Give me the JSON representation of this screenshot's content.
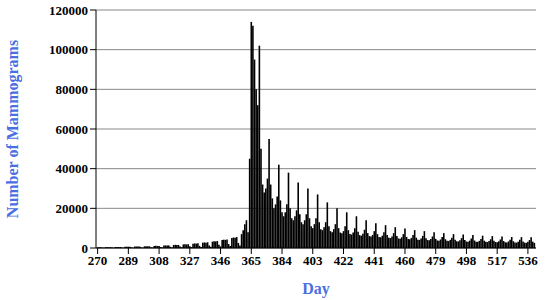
{
  "chart_data": {
    "type": "bar",
    "x_label": "Day",
    "y_label": "Number of Mammograms",
    "color": "#000000",
    "grid": true,
    "xlim": [
      269,
      541
    ],
    "xticks": [
      270,
      289,
      308,
      327,
      346,
      365,
      384,
      403,
      422,
      441,
      460,
      479,
      498,
      517,
      536
    ],
    "ylim": [
      0,
      120000
    ],
    "yticks": [
      0,
      20000,
      40000,
      60000,
      80000,
      100000,
      120000
    ],
    "x": [
      270,
      271,
      272,
      273,
      274,
      275,
      276,
      277,
      278,
      279,
      280,
      281,
      282,
      283,
      284,
      285,
      286,
      287,
      288,
      289,
      290,
      291,
      292,
      293,
      294,
      295,
      296,
      297,
      298,
      299,
      300,
      301,
      302,
      303,
      304,
      305,
      306,
      307,
      308,
      309,
      310,
      311,
      312,
      313,
      314,
      315,
      316,
      317,
      318,
      319,
      320,
      321,
      322,
      323,
      324,
      325,
      326,
      327,
      328,
      329,
      330,
      331,
      332,
      333,
      334,
      335,
      336,
      337,
      338,
      339,
      340,
      341,
      342,
      343,
      344,
      345,
      346,
      347,
      348,
      349,
      350,
      351,
      352,
      353,
      354,
      355,
      356,
      357,
      358,
      359,
      360,
      361,
      362,
      363,
      364,
      365,
      366,
      367,
      368,
      369,
      370,
      371,
      372,
      373,
      374,
      375,
      376,
      377,
      378,
      379,
      380,
      381,
      382,
      383,
      384,
      385,
      386,
      387,
      388,
      389,
      390,
      391,
      392,
      393,
      394,
      395,
      396,
      397,
      398,
      399,
      400,
      401,
      402,
      403,
      404,
      405,
      406,
      407,
      408,
      409,
      410,
      411,
      412,
      413,
      414,
      415,
      416,
      417,
      418,
      419,
      420,
      421,
      422,
      423,
      424,
      425,
      426,
      427,
      428,
      429,
      430,
      431,
      432,
      433,
      434,
      435,
      436,
      437,
      438,
      439,
      440,
      441,
      442,
      443,
      444,
      445,
      446,
      447,
      448,
      449,
      450,
      451,
      452,
      453,
      454,
      455,
      456,
      457,
      458,
      459,
      460,
      461,
      462,
      463,
      464,
      465,
      466,
      467,
      468,
      469,
      470,
      471,
      472,
      473,
      474,
      475,
      476,
      477,
      478,
      479,
      480,
      481,
      482,
      483,
      484,
      485,
      486,
      487,
      488,
      489,
      490,
      491,
      492,
      493,
      494,
      495,
      496,
      497,
      498,
      499,
      500,
      501,
      502,
      503,
      504,
      505,
      506,
      507,
      508,
      509,
      510,
      511,
      512,
      513,
      514,
      515,
      516,
      517,
      518,
      519,
      520,
      521,
      522,
      523,
      524,
      525,
      526,
      527,
      528,
      529,
      530,
      531,
      532,
      533,
      534,
      535,
      536,
      537,
      538,
      539,
      540
    ],
    "values": [
      300,
      400,
      350,
      200,
      100,
      400,
      450,
      380,
      420,
      200,
      100,
      500,
      550,
      480,
      500,
      250,
      120,
      600,
      650,
      600,
      620,
      300,
      150,
      700,
      750,
      700,
      720,
      350,
      180,
      850,
      900,
      850,
      880,
      400,
      200,
      1000,
      1100,
      1000,
      1050,
      500,
      250,
      1200,
      1300,
      1250,
      1300,
      600,
      300,
      1500,
      1600,
      1500,
      1550,
      700,
      350,
      1800,
      1900,
      1800,
      1900,
      900,
      450,
      2200,
      2300,
      2200,
      2400,
      1100,
      550,
      2700,
      2800,
      2700,
      2900,
      1300,
      650,
      3200,
      3400,
      3300,
      3500,
      1600,
      800,
      4000,
      4200,
      4100,
      4300,
      2000,
      1000,
      5000,
      5300,
      5200,
      5500,
      2500,
      1200,
      7000,
      9000,
      12000,
      14000,
      8000,
      45000,
      114000,
      112000,
      95000,
      80000,
      72000,
      102000,
      50000,
      32000,
      28000,
      30000,
      35000,
      55000,
      32000,
      25000,
      20000,
      22000,
      26000,
      42000,
      24000,
      18000,
      16000,
      18000,
      22000,
      38000,
      20000,
      15000,
      14000,
      16000,
      19000,
      33000,
      17000,
      13000,
      12000,
      14000,
      17000,
      30000,
      15000,
      11000,
      10000,
      12000,
      15000,
      27000,
      13000,
      9500,
      9000,
      10500,
      13000,
      23000,
      11000,
      8500,
      8000,
      9500,
      12000,
      20000,
      10000,
      7800,
      7500,
      8500,
      11000,
      18000,
      9000,
      7000,
      6800,
      7800,
      10000,
      16000,
      8200,
      6500,
      6200,
      7200,
      9200,
      14000,
      7500,
      6000,
      5800,
      6600,
      8500,
      12500,
      7000,
      5600,
      5400,
      6200,
      8000,
      11500,
      6500,
      5200,
      5000,
      5800,
      7500,
      10500,
      6000,
      4800,
      4700,
      5400,
      7000,
      9800,
      5600,
      4500,
      4400,
      5100,
      6500,
      9000,
      5200,
      4200,
      4100,
      4800,
      6100,
      8500,
      4900,
      4000,
      3900,
      4500,
      5800,
      8000,
      4600,
      3800,
      3700,
      4300,
      5500,
      7500,
      4400,
      3600,
      3500,
      4100,
      5200,
      7000,
      4200,
      3400,
      3300,
      3900,
      5000,
      6800,
      4000,
      3300,
      3200,
      3700,
      4800,
      6500,
      3800,
      3200,
      3100,
      3600,
      4600,
      6200,
      3700,
      3100,
      3000,
      3500,
      4400,
      6000,
      3600,
      3000,
      2900,
      3400,
      4300,
      5800,
      3500,
      2900,
      2800,
      3300,
      4200,
      5600,
      3400,
      2800,
      2700,
      3200,
      4100,
      5500,
      3300,
      2700,
      2600,
      3100,
      4000,
      5400,
      3200,
      2600
    ]
  }
}
